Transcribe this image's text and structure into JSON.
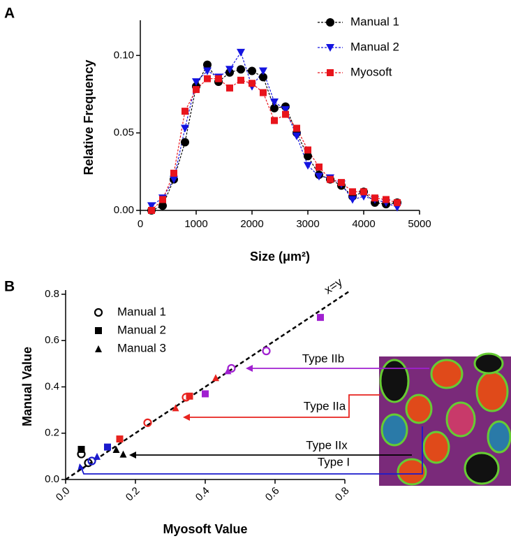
{
  "chart_data": [
    {
      "type": "line",
      "panel_label": "A",
      "x_label": "Size (μm²)",
      "y_label": "Relative Frequency",
      "x": [
        200,
        400,
        600,
        800,
        1000,
        1200,
        1400,
        1600,
        1800,
        2000,
        2200,
        2400,
        2600,
        2800,
        3000,
        3200,
        3400,
        3600,
        3800,
        4000,
        4200,
        4400,
        4600
      ],
      "series": [
        {
          "name": "Manual 1",
          "color": "#000000",
          "marker": "circle",
          "values": [
            0.0,
            0.003,
            0.02,
            0.044,
            0.08,
            0.094,
            0.083,
            0.089,
            0.091,
            0.09,
            0.086,
            0.066,
            0.067,
            0.05,
            0.035,
            0.023,
            0.02,
            0.016,
            0.009,
            0.012,
            0.005,
            0.004,
            0.005
          ]
        },
        {
          "name": "Manual 2",
          "color": "#1414e0",
          "marker": "triangle-down",
          "values": [
            0.003,
            0.008,
            0.02,
            0.053,
            0.083,
            0.09,
            0.086,
            0.091,
            0.102,
            0.08,
            0.09,
            0.07,
            0.065,
            0.048,
            0.029,
            0.022,
            0.021,
            0.017,
            0.007,
            0.009,
            0.007,
            0.005,
            0.002
          ]
        },
        {
          "name": "Myosoft",
          "color": "#e8141c",
          "marker": "square",
          "values": [
            0.0,
            0.007,
            0.024,
            0.064,
            0.078,
            0.085,
            0.085,
            0.079,
            0.084,
            0.082,
            0.076,
            0.058,
            0.062,
            0.053,
            0.039,
            0.028,
            0.02,
            0.018,
            0.012,
            0.012,
            0.008,
            0.007,
            0.005
          ]
        }
      ],
      "xlim": [
        0,
        5000
      ],
      "xticks": [
        0,
        1000,
        2000,
        3000,
        4000,
        5000
      ],
      "ylim": [
        0,
        0.12
      ],
      "yticks": [
        {
          "value": 0,
          "label": "0.00"
        },
        {
          "value": 0.05,
          "label": "0.05"
        },
        {
          "value": 0.1,
          "label": "0.10"
        }
      ],
      "legend": "top-right"
    },
    {
      "type": "scatter",
      "panel_label": "B",
      "x_label": "Myosoft Value",
      "y_label": "Manual Value",
      "series": [
        {
          "name": "Manual 1",
          "marker": "circle-open",
          "x": [
            0.045,
            0.065,
            0.075,
            0.235,
            0.345,
            0.475,
            0.575
          ],
          "values": [
            0.11,
            0.072,
            0.08,
            0.245,
            0.355,
            0.48,
            0.555
          ],
          "point_colors": [
            "#000000",
            "#000000",
            "#1a1acc",
            "#e8231f",
            "#e8231f",
            "#a020d0",
            "#a020d0"
          ]
        },
        {
          "name": "Manual 2",
          "marker": "square",
          "x": [
            0.045,
            0.12,
            0.155,
            0.355,
            0.4,
            0.73
          ],
          "values": [
            0.13,
            0.14,
            0.175,
            0.36,
            0.37,
            0.7
          ],
          "point_colors": [
            "#000000",
            "#1a1acc",
            "#e8231f",
            "#e8231f",
            "#a020d0",
            "#a020d0"
          ]
        },
        {
          "name": "Manual 3",
          "marker": "triangle",
          "x": [
            0.09,
            0.145,
            0.165,
            0.315,
            0.43,
            0.465
          ],
          "values": [
            0.1,
            0.13,
            0.11,
            0.31,
            0.44,
            0.47
          ],
          "point_colors": [
            "#1a1acc",
            "#000000",
            "#000000",
            "#e8231f",
            "#e8231f",
            "#a020d0"
          ]
        }
      ],
      "xlim": [
        0,
        0.8
      ],
      "xticks": [
        {
          "value": 0,
          "label": "0.0"
        },
        {
          "value": 0.2,
          "label": "0.2"
        },
        {
          "value": 0.4,
          "label": "0.4"
        },
        {
          "value": 0.6,
          "label": "0.6"
        },
        {
          "value": 0.8,
          "label": "0.8"
        }
      ],
      "ylim": [
        0,
        0.8
      ],
      "yticks": [
        {
          "value": 0,
          "label": "0.0"
        },
        {
          "value": 0.2,
          "label": "0.2"
        },
        {
          "value": 0.4,
          "label": "0.4"
        },
        {
          "value": 0.6,
          "label": "0.6"
        },
        {
          "value": 0.8,
          "label": "0.8"
        }
      ],
      "legend": "top-left",
      "annotations": [
        {
          "text": "x=y",
          "color": "#000000"
        },
        {
          "text": "Type IIb",
          "color": "#a020d0"
        },
        {
          "text": "Type IIa",
          "color": "#e8231f"
        },
        {
          "text": "Type IIx",
          "color": "#000000"
        },
        {
          "text": "Type I",
          "color": "#1a1acc"
        }
      ]
    }
  ]
}
